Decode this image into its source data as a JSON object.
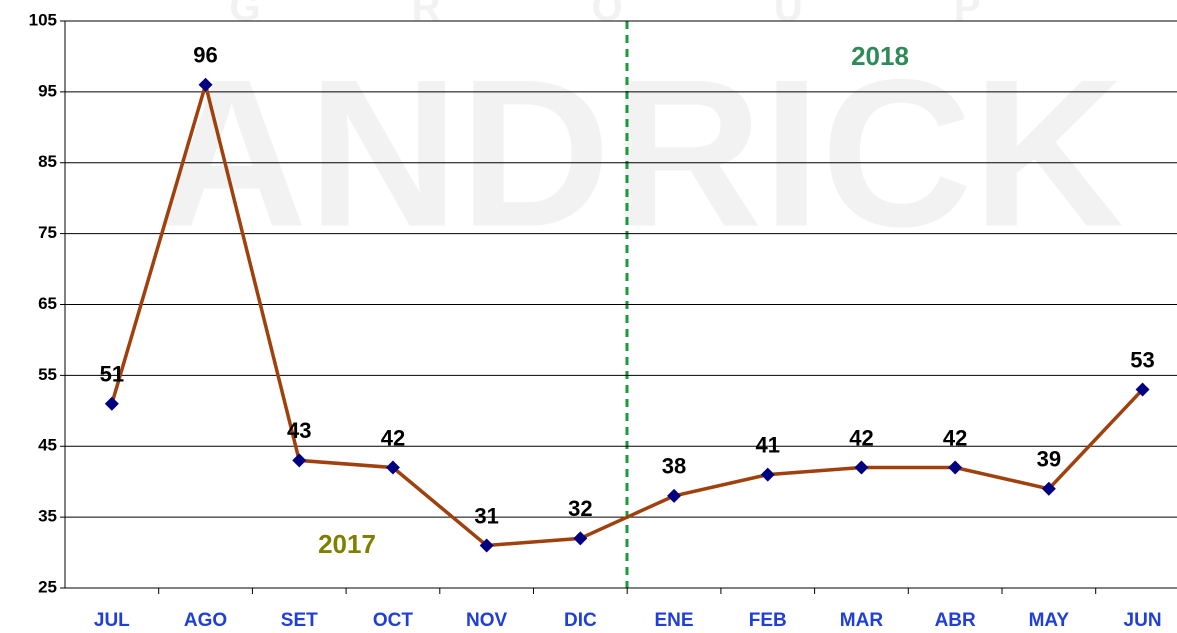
{
  "chart_data": {
    "type": "line",
    "watermark": "ANDRICK",
    "watermark_sub": "G R O U P",
    "categories": [
      "JUL",
      "AGO",
      "SET",
      "OCT",
      "NOV",
      "DIC",
      "ENE",
      "FEB",
      "MAR",
      "ABR",
      "MAY",
      "JUN"
    ],
    "series": [
      {
        "color": "#a0410d",
        "marker_color": "#000080",
        "values": [
          51,
          96,
          43,
          42,
          31,
          32,
          38,
          41,
          42,
          42,
          39,
          53
        ]
      }
    ],
    "ylim": [
      25,
      105
    ],
    "yticks": [
      25,
      35,
      45,
      55,
      65,
      75,
      85,
      95,
      105
    ],
    "grid": true,
    "annotations": [
      {
        "text": "2017",
        "color": "#808000"
      },
      {
        "text": "2018",
        "color": "#2e8b57"
      }
    ]
  }
}
